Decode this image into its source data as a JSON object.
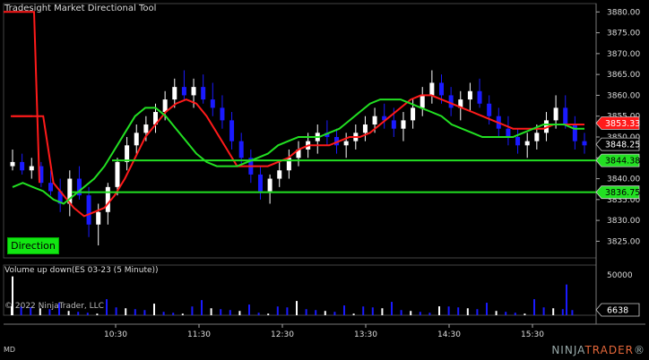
{
  "app": {
    "indicator_title": "Tradesight Market Directional Tool",
    "volume_title": "Volume up down(ES 03-23 (5 Minute))",
    "copyright": "© 2022 NinjaTrader, LLC",
    "md_label": "MD",
    "brand_ninja": "NINJA",
    "brand_trader": "TRADER",
    "brand_suffix": "®",
    "direction_button": "Direction"
  },
  "colors": {
    "background": "#000000",
    "up_candle": "#ffffff",
    "down_candle": "#1a1aff",
    "red_line": "#ff1a1a",
    "green_line": "#22e022",
    "axis_text": "#dddddd"
  },
  "chart_data": {
    "type": "candlestick",
    "price_axis": {
      "ticks": [
        "3880.00",
        "3875.00",
        "3870.00",
        "3865.00",
        "3860.00",
        "3855.00",
        "3850.00",
        "3845.00",
        "3840.00",
        "3835.00",
        "3830.00",
        "3825.00"
      ],
      "ylim": [
        3821,
        3882
      ]
    },
    "time_axis": {
      "ticks": [
        "10:30",
        "11:30",
        "12:30",
        "13:30",
        "14:30",
        "15:30"
      ]
    },
    "price_markers": [
      {
        "label": "3853.33",
        "value": 3853.33,
        "color": "#ff1a1a",
        "text_color": "#ffffff"
      },
      {
        "label": "3848.25",
        "value": 3848.25,
        "color": "#000000",
        "text_color": "#ffffff"
      },
      {
        "label": "3844.38",
        "value": 3844.38,
        "color": "#22e022",
        "text_color": "#000000"
      },
      {
        "label": "3836.75",
        "value": 3836.75,
        "color": "#22e022",
        "text_color": "#000000"
      }
    ],
    "candles": [
      [
        3843,
        3847,
        3842,
        3844
      ],
      [
        3844,
        3846,
        3841,
        3842
      ],
      [
        3842,
        3845,
        3840,
        3843
      ],
      [
        3843,
        3844,
        3838,
        3839
      ],
      [
        3839,
        3842,
        3836,
        3837
      ],
      [
        3837,
        3840,
        3832,
        3834
      ],
      [
        3834,
        3842,
        3831,
        3840
      ],
      [
        3840,
        3843,
        3835,
        3836
      ],
      [
        3836,
        3838,
        3826,
        3829
      ],
      [
        3829,
        3834,
        3824,
        3832
      ],
      [
        3832,
        3839,
        3829,
        3838
      ],
      [
        3838,
        3845,
        3836,
        3844
      ],
      [
        3844,
        3850,
        3842,
        3848
      ],
      [
        3848,
        3853,
        3846,
        3851
      ],
      [
        3851,
        3855,
        3849,
        3853
      ],
      [
        3853,
        3858,
        3851,
        3856
      ],
      [
        3856,
        3861,
        3854,
        3859
      ],
      [
        3859,
        3864,
        3857,
        3862
      ],
      [
        3862,
        3866,
        3859,
        3860
      ],
      [
        3860,
        3864,
        3857,
        3862
      ],
      [
        3862,
        3865,
        3858,
        3859
      ],
      [
        3859,
        3863,
        3855,
        3857
      ],
      [
        3857,
        3860,
        3852,
        3854
      ],
      [
        3854,
        3856,
        3847,
        3849
      ],
      [
        3849,
        3851,
        3843,
        3845
      ],
      [
        3845,
        3847,
        3839,
        3841
      ],
      [
        3841,
        3843,
        3835,
        3837
      ],
      [
        3837,
        3841,
        3834,
        3840
      ],
      [
        3840,
        3844,
        3838,
        3842
      ],
      [
        3842,
        3847,
        3840,
        3845
      ],
      [
        3845,
        3849,
        3843,
        3847
      ],
      [
        3847,
        3851,
        3845,
        3849
      ],
      [
        3849,
        3853,
        3846,
        3851
      ],
      [
        3851,
        3854,
        3848,
        3850
      ],
      [
        3850,
        3852,
        3846,
        3848
      ],
      [
        3848,
        3851,
        3845,
        3849
      ],
      [
        3849,
        3853,
        3847,
        3851
      ],
      [
        3851,
        3855,
        3849,
        3853
      ],
      [
        3853,
        3857,
        3851,
        3855
      ],
      [
        3855,
        3858,
        3852,
        3854
      ],
      [
        3854,
        3857,
        3850,
        3852
      ],
      [
        3852,
        3856,
        3849,
        3854
      ],
      [
        3854,
        3859,
        3852,
        3857
      ],
      [
        3857,
        3862,
        3855,
        3860
      ],
      [
        3860,
        3866,
        3858,
        3863
      ],
      [
        3863,
        3865,
        3858,
        3860
      ],
      [
        3860,
        3862,
        3855,
        3857
      ],
      [
        3857,
        3861,
        3854,
        3859
      ],
      [
        3859,
        3863,
        3856,
        3861
      ],
      [
        3861,
        3864,
        3857,
        3858
      ],
      [
        3858,
        3860,
        3853,
        3855
      ],
      [
        3855,
        3857,
        3850,
        3852
      ],
      [
        3852,
        3855,
        3848,
        3850
      ],
      [
        3850,
        3852,
        3846,
        3848
      ],
      [
        3848,
        3851,
        3845,
        3849
      ],
      [
        3849,
        3853,
        3847,
        3851
      ],
      [
        3851,
        3856,
        3849,
        3854
      ],
      [
        3854,
        3860,
        3852,
        3857
      ],
      [
        3857,
        3860,
        3852,
        3853
      ],
      [
        3853,
        3855,
        3847,
        3849
      ],
      [
        3849,
        3851,
        3846,
        3848
      ]
    ],
    "red_line": [
      3855,
      3855,
      3855,
      3855,
      3839,
      3836,
      3833,
      3831,
      3832,
      3833,
      3836,
      3840,
      3845,
      3850,
      3853,
      3856,
      3858,
      3859,
      3858,
      3855,
      3851,
      3847,
      3843,
      3843,
      3843,
      3843,
      3844,
      3845,
      3847,
      3848,
      3848,
      3848,
      3849,
      3850,
      3850,
      3851,
      3853,
      3855,
      3857,
      3859,
      3860,
      3860,
      3859,
      3858,
      3857,
      3856,
      3855,
      3854,
      3853,
      3852,
      3852,
      3852,
      3852,
      3853,
      3853,
      3853,
      3853
    ],
    "green_lines": [
      {
        "name": "fast",
        "values": [
          3838,
          3839,
          3838,
          3837,
          3835,
          3834,
          3836,
          3838,
          3840,
          3843,
          3847,
          3851,
          3855,
          3857,
          3857,
          3855,
          3852,
          3849,
          3846,
          3844,
          3843,
          3843,
          3843,
          3844,
          3845,
          3846,
          3848,
          3849,
          3850,
          3850,
          3850,
          3851,
          3852,
          3854,
          3856,
          3858,
          3859,
          3859,
          3859,
          3858,
          3857,
          3856,
          3855,
          3853,
          3852,
          3851,
          3850,
          3850,
          3850,
          3850,
          3851,
          3852,
          3853,
          3853,
          3853,
          3852,
          3852
        ]
      },
      {
        "name": "upper_level",
        "value": 3844.38
      },
      {
        "name": "lower_level",
        "value": 3836.75
      }
    ],
    "volume": {
      "axis_ticks": [
        "50000"
      ],
      "last_value": "6638",
      "last_value_num": 6638
    }
  }
}
